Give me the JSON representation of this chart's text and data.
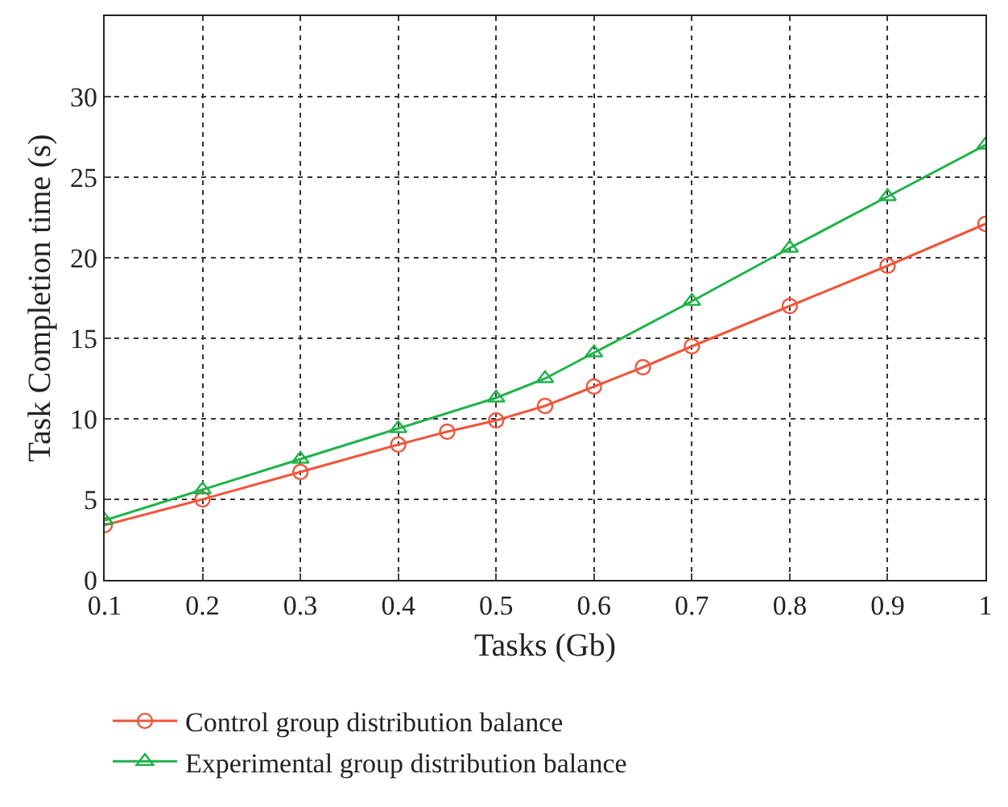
{
  "chart_data": {
    "type": "line",
    "xlabel": "Tasks (Gb)",
    "ylabel": "Task Completion time (s)",
    "xlim": [
      0.1,
      1
    ],
    "xticks": [
      0.1,
      0.2,
      0.3,
      0.4,
      0.5,
      0.6,
      0.7,
      0.8,
      0.9,
      1
    ],
    "ylim": [
      0,
      35
    ],
    "yticks": [
      0,
      5,
      10,
      15,
      20,
      25,
      30
    ],
    "grid": true,
    "legend": "bottom",
    "line_style": "solid",
    "series": [
      {
        "name": "Control group distribution balance",
        "color": "#f0553a",
        "marker": "circle",
        "x": [
          0.1,
          0.2,
          0.3,
          0.4,
          0.45,
          0.5,
          0.55,
          0.6,
          0.65,
          0.7,
          0.8,
          0.9,
          1.0
        ],
        "values": [
          3.4,
          5.0,
          6.7,
          8.4,
          9.2,
          9.9,
          10.8,
          12.0,
          13.2,
          14.5,
          17.0,
          19.5,
          22.1
        ]
      },
      {
        "name": "Experimental group distribution balance",
        "color": "#1fb24a",
        "marker": "triangle",
        "x": [
          0.1,
          0.2,
          0.3,
          0.4,
          0.5,
          0.55,
          0.6,
          0.7,
          0.8,
          0.9,
          1.0
        ],
        "values": [
          3.7,
          5.6,
          7.5,
          9.4,
          11.3,
          12.5,
          14.1,
          17.3,
          20.6,
          23.8,
          27.0
        ]
      }
    ]
  }
}
